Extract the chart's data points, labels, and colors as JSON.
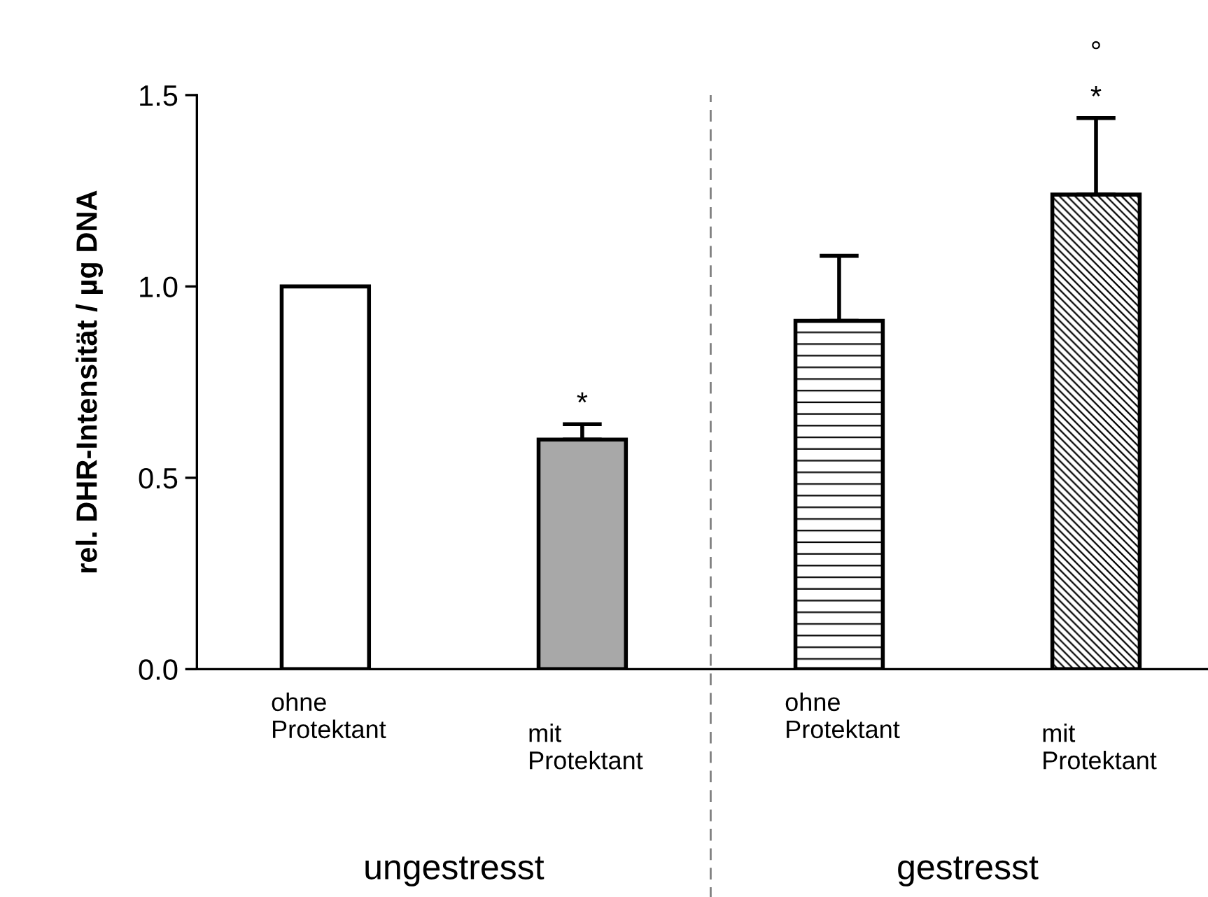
{
  "chart_data": {
    "type": "bar",
    "ylabel": "rel. DHR-Intensität / µg DNA",
    "categories": [
      "ohne\nProtektant",
      "mit\nProtektant",
      "ohne\nProtektant",
      "mit\nProtektant"
    ],
    "values": [
      1.0,
      0.6,
      0.91,
      1.24
    ],
    "errors": [
      null,
      0.04,
      0.17,
      0.2
    ],
    "colors": [
      "#ffffff",
      "#a8a8a8",
      "#ffffff",
      "#ffffff"
    ],
    "ylim": [
      0,
      1.5
    ],
    "yticks": [
      {
        "value": 0,
        "label": "0.0"
      },
      {
        "value": 0.5,
        "label": "0.5"
      },
      {
        "value": 1.0,
        "label": "1.0"
      },
      {
        "value": 1.5,
        "label": "1.5"
      }
    ],
    "annotations": [
      "ungestresst",
      "gestresst",
      "*",
      "*",
      "°"
    ],
    "grid": false,
    "legend": false
  }
}
